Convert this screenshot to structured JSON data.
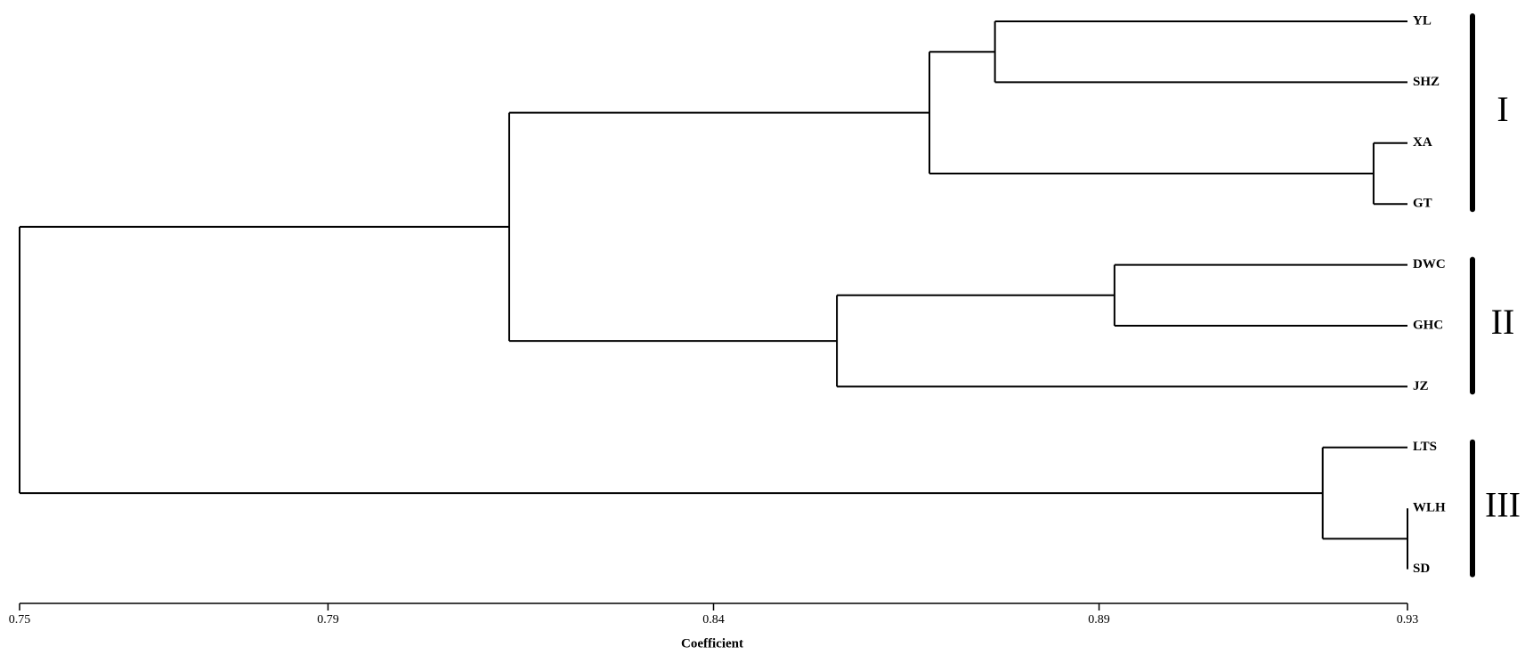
{
  "chart_data": {
    "type": "dendrogram",
    "xlabel": "Coefficient",
    "xlim": [
      0.75,
      0.93
    ],
    "xticks": [
      0.75,
      0.79,
      0.84,
      0.89,
      0.93
    ],
    "color": "#000000",
    "tree": {
      "height": 0.75,
      "children": [
        {
          "height": 0.8135,
          "children": [
            {
              "height": 0.868,
              "children": [
                {
                  "height": 0.8765,
                  "children": [
                    {
                      "label": "YL"
                    },
                    {
                      "label": "SHZ"
                    }
                  ]
                },
                {
                  "height": 0.9256,
                  "children": [
                    {
                      "label": "XA"
                    },
                    {
                      "label": "GT"
                    }
                  ]
                }
              ]
            },
            {
              "height": 0.856,
              "children": [
                {
                  "height": 0.892,
                  "children": [
                    {
                      "label": "DWC"
                    },
                    {
                      "label": "GHC"
                    }
                  ]
                },
                {
                  "label": "JZ"
                }
              ]
            }
          ]
        },
        {
          "height": 0.919,
          "children": [
            {
              "label": "LTS"
            },
            {
              "height": 0.93,
              "children": [
                {
                  "label": "WLH"
                },
                {
                  "label": "SD"
                }
              ]
            }
          ]
        }
      ]
    },
    "groups": [
      {
        "label": "I",
        "members": [
          "YL",
          "SHZ",
          "XA",
          "GT"
        ]
      },
      {
        "label": "II",
        "members": [
          "DWC",
          "GHC",
          "JZ"
        ]
      },
      {
        "label": "III",
        "members": [
          "LTS",
          "WLH",
          "SD"
        ]
      }
    ]
  }
}
